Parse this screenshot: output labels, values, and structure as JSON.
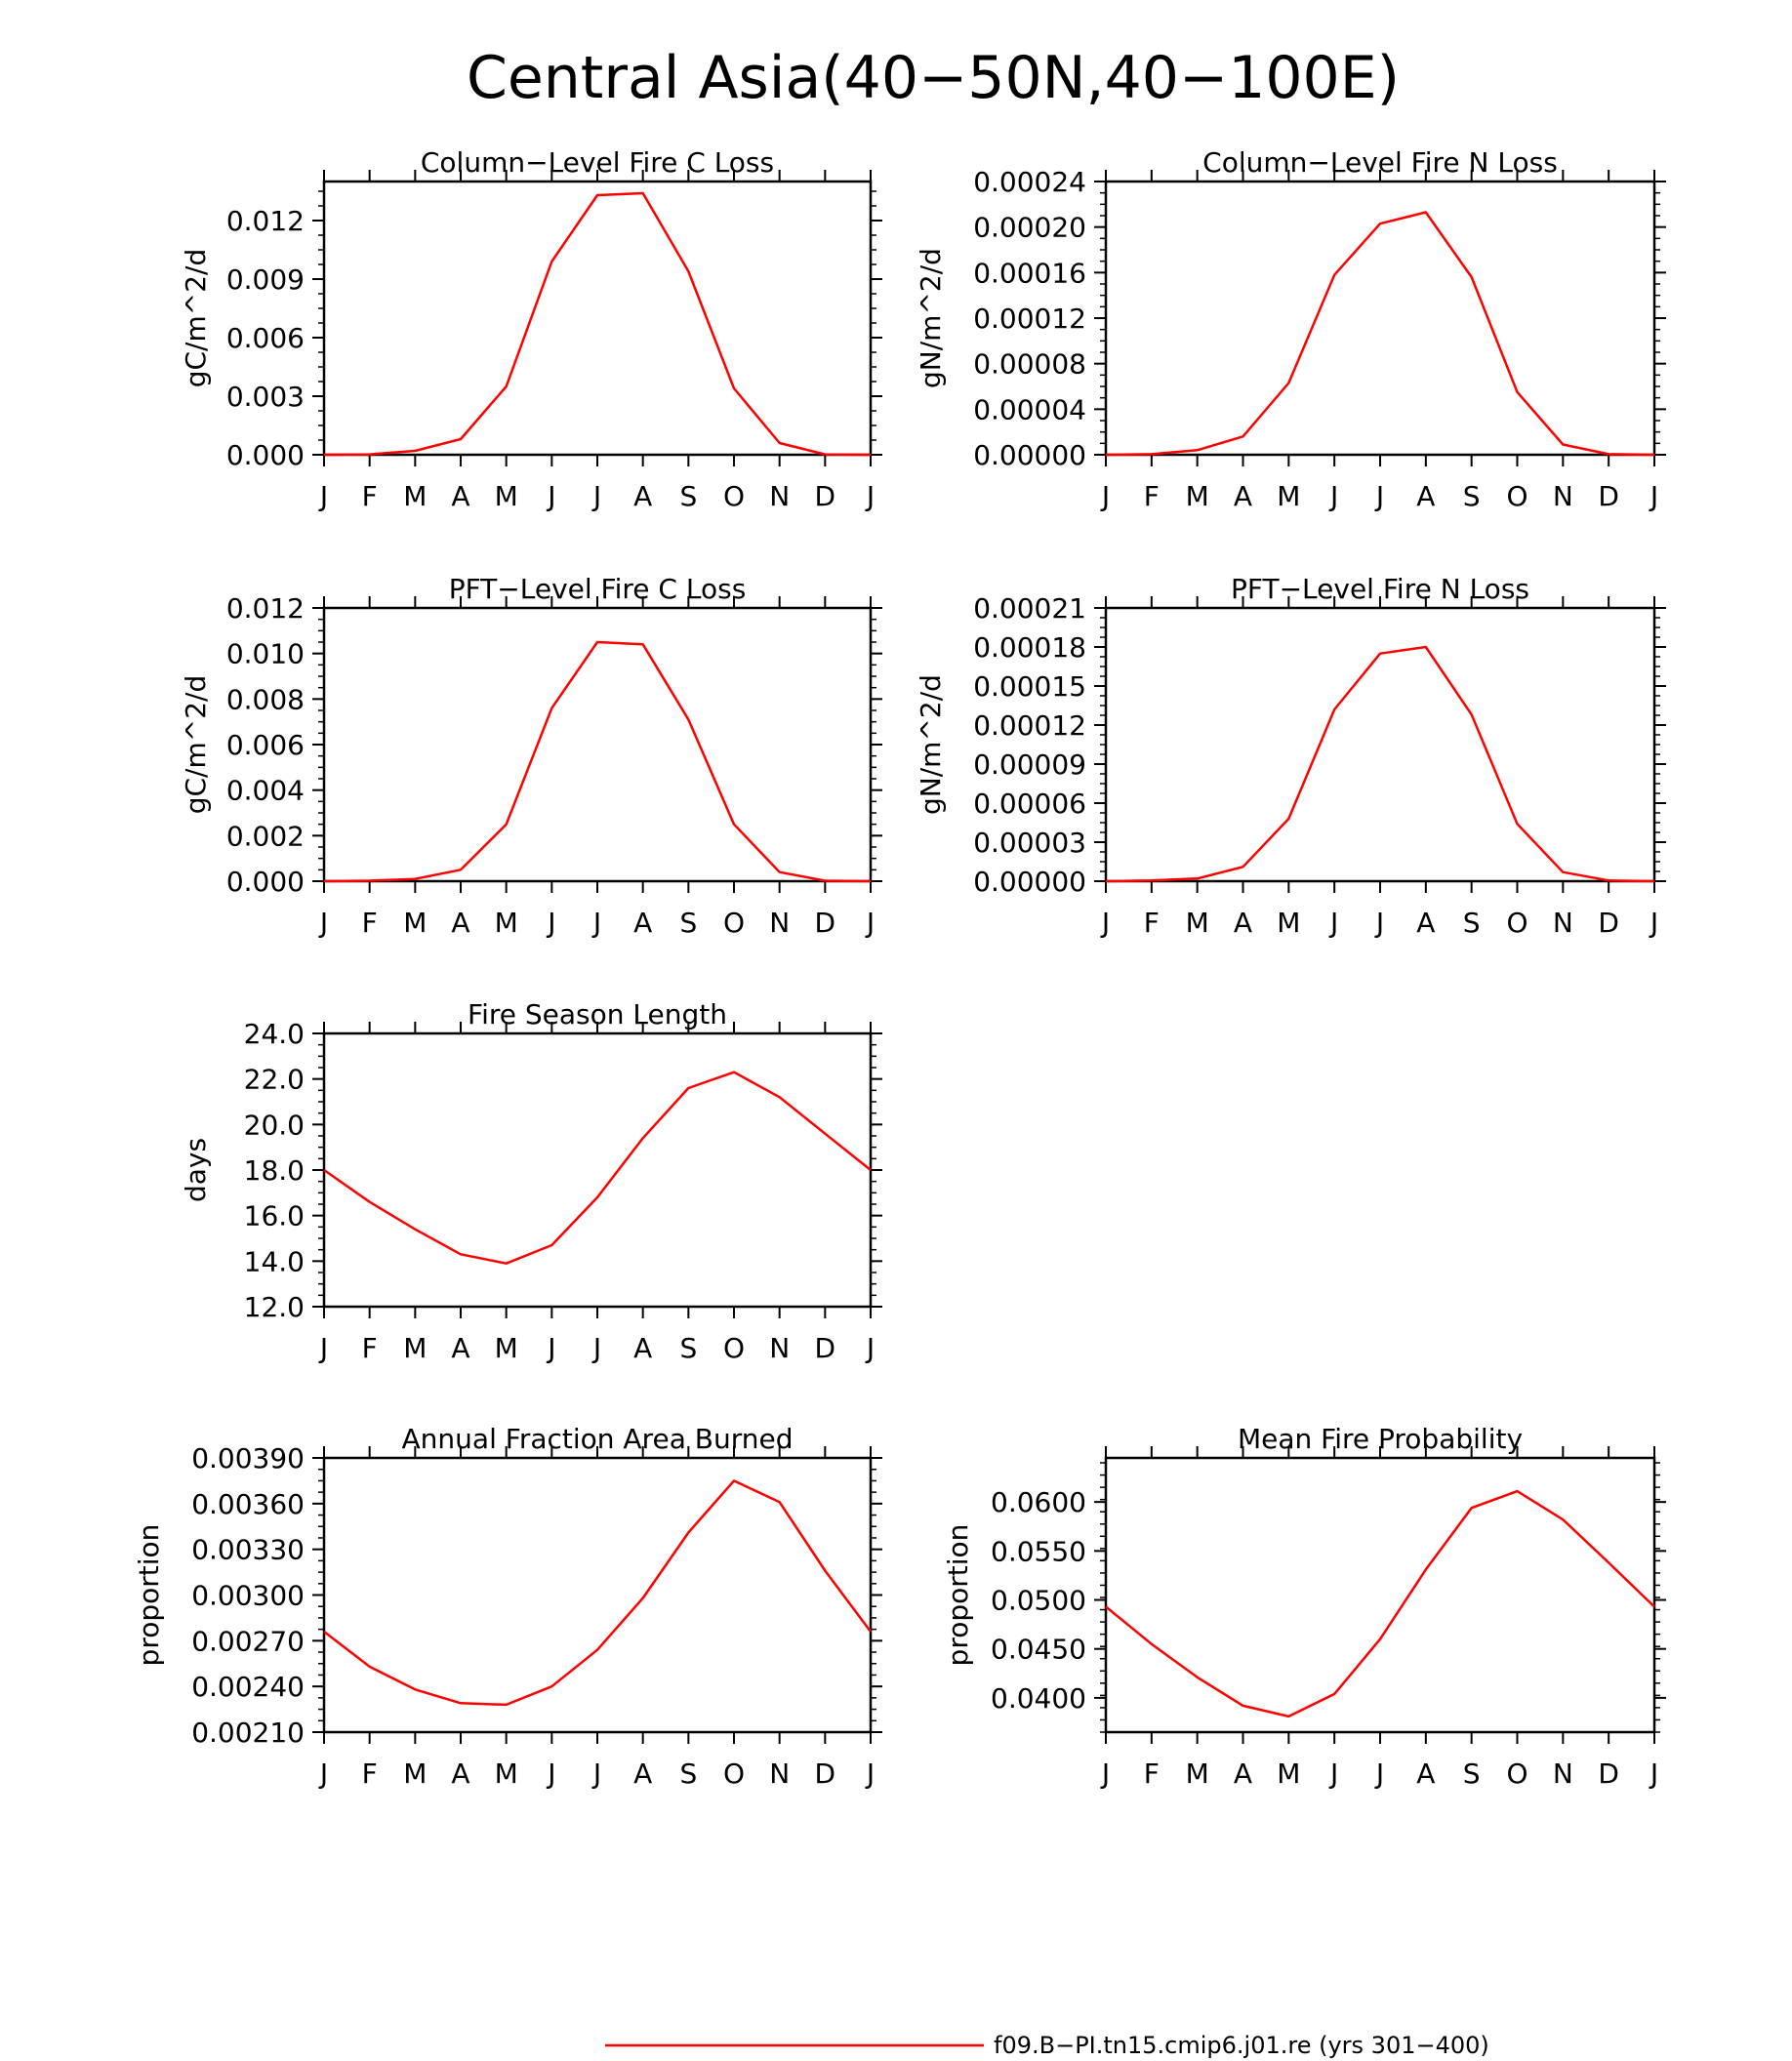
{
  "figure": {
    "title": "Central Asia(40−50N,40−100E)",
    "line_color": "#ff0000"
  },
  "legend": {
    "label": "f09.B−PI.tn15.cmip6.j01.re (yrs 301−400)",
    "color": "#ff0000",
    "placement": "bottom"
  },
  "chart_data": [
    {
      "id": "col-c",
      "type": "line",
      "title": "Column−Level Fire C Loss",
      "ylabel": "gC/m^2/d",
      "ylim": [
        0,
        0.014
      ],
      "yticks": [
        0,
        0.003,
        0.006,
        0.009,
        0.012
      ],
      "ytick_labels": [
        "0.000",
        "0.003",
        "0.006",
        "0.009",
        "0.012"
      ],
      "categories": [
        "J",
        "F",
        "M",
        "A",
        "M",
        "J",
        "J",
        "A",
        "S",
        "O",
        "N",
        "D",
        "J"
      ],
      "series": [
        {
          "color": "#ff0000",
          "values": [
            0.0,
            2e-05,
            0.0002,
            0.0008,
            0.0035,
            0.0099,
            0.0133,
            0.0134,
            0.0094,
            0.0034,
            0.0006,
            2e-05,
            0.0
          ]
        }
      ]
    },
    {
      "id": "col-n",
      "type": "line",
      "title": "Column−Level Fire N Loss",
      "ylabel": "gN/m^2/d",
      "ylim": [
        0,
        0.00024
      ],
      "yticks": [
        0,
        4e-05,
        8e-05,
        0.00012,
        0.00016,
        0.0002,
        0.00024
      ],
      "ytick_labels": [
        "0.00000",
        "0.00004",
        "0.00008",
        "0.00012",
        "0.00016",
        "0.00020",
        "0.00024"
      ],
      "categories": [
        "J",
        "F",
        "M",
        "A",
        "M",
        "J",
        "J",
        "A",
        "S",
        "O",
        "N",
        "D",
        "J"
      ],
      "series": [
        {
          "color": "#ff0000",
          "values": [
            0.0,
            5e-07,
            4e-06,
            1.6e-05,
            6.3e-05,
            0.000158,
            0.000203,
            0.000213,
            0.000156,
            5.5e-05,
            9e-06,
            5e-07,
            0.0
          ]
        }
      ]
    },
    {
      "id": "pft-c",
      "type": "line",
      "title": "PFT−Level Fire C Loss",
      "ylabel": "gC/m^2/d",
      "ylim": [
        0,
        0.012
      ],
      "yticks": [
        0,
        0.002,
        0.004,
        0.006,
        0.008,
        0.01,
        0.012
      ],
      "ytick_labels": [
        "0.000",
        "0.002",
        "0.004",
        "0.006",
        "0.008",
        "0.010",
        "0.012"
      ],
      "categories": [
        "J",
        "F",
        "M",
        "A",
        "M",
        "J",
        "J",
        "A",
        "S",
        "O",
        "N",
        "D",
        "J"
      ],
      "series": [
        {
          "color": "#ff0000",
          "values": [
            0.0,
            2e-05,
            0.0001,
            0.0005,
            0.0025,
            0.0076,
            0.0105,
            0.0104,
            0.0071,
            0.0025,
            0.0004,
            2e-05,
            0.0
          ]
        }
      ]
    },
    {
      "id": "pft-n",
      "type": "line",
      "title": "PFT−Level Fire N Loss",
      "ylabel": "gN/m^2/d",
      "ylim": [
        0,
        0.00021
      ],
      "yticks": [
        0,
        3e-05,
        6e-05,
        9e-05,
        0.00012,
        0.00015,
        0.00018,
        0.00021
      ],
      "ytick_labels": [
        "0.00000",
        "0.00003",
        "0.00006",
        "0.00009",
        "0.00012",
        "0.00015",
        "0.00018",
        "0.00021"
      ],
      "categories": [
        "J",
        "F",
        "M",
        "A",
        "M",
        "J",
        "J",
        "A",
        "S",
        "O",
        "N",
        "D",
        "J"
      ],
      "series": [
        {
          "color": "#ff0000",
          "values": [
            0.0,
            5e-07,
            2e-06,
            1.1e-05,
            4.8e-05,
            0.000132,
            0.000175,
            0.00018,
            0.000128,
            4.4e-05,
            7e-06,
            5e-07,
            0.0
          ]
        }
      ]
    },
    {
      "id": "season",
      "type": "line",
      "title": "Fire Season Length",
      "ylabel": "days",
      "ylim": [
        12,
        24
      ],
      "yticks": [
        12,
        14,
        16,
        18,
        20,
        22,
        24
      ],
      "ytick_labels": [
        "12.0",
        "14.0",
        "16.0",
        "18.0",
        "20.0",
        "22.0",
        "24.0"
      ],
      "categories": [
        "J",
        "F",
        "M",
        "A",
        "M",
        "J",
        "J",
        "A",
        "S",
        "O",
        "N",
        "D",
        "J"
      ],
      "series": [
        {
          "color": "#ff0000",
          "values": [
            18.0,
            16.6,
            15.4,
            14.3,
            13.9,
            14.7,
            16.8,
            19.4,
            21.6,
            22.3,
            21.2,
            19.6,
            18.0
          ]
        }
      ]
    },
    {
      "id": "burned",
      "type": "line",
      "title": "Annual Fraction Area Burned",
      "ylabel": "proportion",
      "ylim": [
        0.0021,
        0.0039
      ],
      "yticks": [
        0.0021,
        0.0024,
        0.0027,
        0.003,
        0.0033,
        0.0036,
        0.0039
      ],
      "ytick_labels": [
        "0.00210",
        "0.00240",
        "0.00270",
        "0.00300",
        "0.00330",
        "0.00360",
        "0.00390"
      ],
      "categories": [
        "J",
        "F",
        "M",
        "A",
        "M",
        "J",
        "J",
        "A",
        "S",
        "O",
        "N",
        "D",
        "J"
      ],
      "series": [
        {
          "color": "#ff0000",
          "values": [
            0.00276,
            0.00253,
            0.00238,
            0.00229,
            0.00228,
            0.0024,
            0.00264,
            0.00298,
            0.00341,
            0.00375,
            0.00361,
            0.00316,
            0.00276
          ]
        }
      ]
    },
    {
      "id": "prob",
      "type": "line",
      "title": "Mean Fire Probability",
      "ylabel": "proportion",
      "ylim": [
        0.0365,
        0.0645
      ],
      "yticks": [
        0.04,
        0.045,
        0.05,
        0.055,
        0.06
      ],
      "ytick_labels": [
        "0.0400",
        "0.0450",
        "0.0500",
        "0.0550",
        "0.0600"
      ],
      "categories": [
        "J",
        "F",
        "M",
        "A",
        "M",
        "J",
        "J",
        "A",
        "S",
        "O",
        "N",
        "D",
        "J"
      ],
      "series": [
        {
          "color": "#ff0000",
          "values": [
            0.0493,
            0.0455,
            0.0421,
            0.0392,
            0.0381,
            0.0404,
            0.046,
            0.0531,
            0.0594,
            0.0611,
            0.0582,
            0.0538,
            0.0493
          ]
        }
      ]
    }
  ]
}
